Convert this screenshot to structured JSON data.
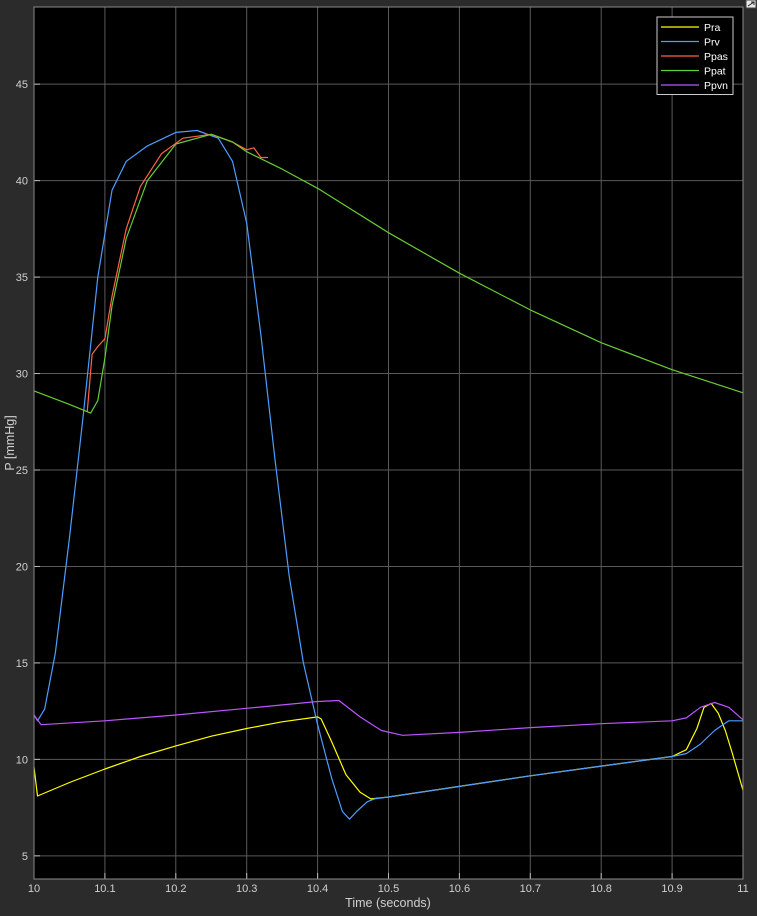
{
  "chart_data": {
    "type": "line",
    "title": "",
    "xlabel": "Time (seconds)",
    "ylabel": "P [mmHg]",
    "xlim": [
      10,
      11
    ],
    "ylim": [
      3.8,
      49
    ],
    "xticks": [
      10,
      10.1,
      10.2,
      10.3,
      10.4,
      10.5,
      10.6,
      10.7,
      10.8,
      10.9,
      11
    ],
    "xtick_labels": [
      "10",
      "10.1",
      "10.2",
      "10.3",
      "10.4",
      "10.5",
      "10.6",
      "10.7",
      "10.8",
      "10.9",
      "11"
    ],
    "yticks": [
      5,
      10,
      15,
      20,
      25,
      30,
      35,
      40,
      45
    ],
    "ytick_labels": [
      "5",
      "10",
      "15",
      "20",
      "25",
      "30",
      "35",
      "40",
      "45"
    ],
    "grid": true,
    "legend_position": "top-right",
    "background": "#000000",
    "series": [
      {
        "name": "Pra",
        "color": "#ffff00",
        "x": [
          10,
          10.005,
          10.05,
          10.1,
          10.15,
          10.2,
          10.25,
          10.3,
          10.35,
          10.4,
          10.405,
          10.42,
          10.44,
          10.46,
          10.475,
          10.5,
          10.6,
          10.7,
          10.8,
          10.9,
          10.92,
          10.935,
          10.945,
          10.955,
          10.965,
          10.975,
          10.985,
          11
        ],
        "y": [
          9.6,
          8.1,
          8.8,
          9.5,
          10.15,
          10.7,
          11.2,
          11.6,
          11.95,
          12.2,
          12.1,
          10.9,
          9.2,
          8.3,
          7.95,
          8.05,
          8.6,
          9.15,
          9.65,
          10.15,
          10.5,
          11.6,
          12.7,
          12.9,
          12.4,
          11.5,
          10.3,
          8.4
        ]
      },
      {
        "name": "Prv",
        "color": "#4d9cff",
        "x": [
          10,
          10.005,
          10.015,
          10.03,
          10.05,
          10.07,
          10.09,
          10.11,
          10.13,
          10.16,
          10.2,
          10.23,
          10.26,
          10.28,
          10.3,
          10.32,
          10.34,
          10.36,
          10.38,
          10.4,
          10.42,
          10.435,
          10.445,
          10.455,
          10.47,
          10.48,
          10.5,
          10.6,
          10.7,
          10.8,
          10.9,
          10.92,
          10.94,
          10.96,
          10.98,
          11
        ],
        "y": [
          12.3,
          12.0,
          12.6,
          15.5,
          21.5,
          28.0,
          35.0,
          39.5,
          41.0,
          41.8,
          42.5,
          42.6,
          42.2,
          41.0,
          37.8,
          32.0,
          25.5,
          19.5,
          15.0,
          11.8,
          9.0,
          7.3,
          6.9,
          7.3,
          7.8,
          7.95,
          8.05,
          8.6,
          9.15,
          9.65,
          10.15,
          10.3,
          10.8,
          11.5,
          12.0,
          12.0
        ]
      },
      {
        "name": "Ppas",
        "color": "#ff6347",
        "x": [
          10.075,
          10.082,
          10.09,
          10.1,
          10.11,
          10.13,
          10.15,
          10.18,
          10.21,
          10.25,
          10.28,
          10.3,
          10.31,
          10.32,
          10.33
        ],
        "y": [
          28.0,
          31.0,
          31.4,
          31.8,
          34.0,
          37.5,
          39.7,
          41.4,
          42.2,
          42.4,
          42.0,
          41.6,
          41.7,
          41.2,
          41.2
        ]
      },
      {
        "name": "Ppat",
        "color": "#66cc33",
        "x": [
          10,
          10.05,
          10.08,
          10.09,
          10.1,
          10.11,
          10.13,
          10.16,
          10.2,
          10.25,
          10.28,
          10.3,
          10.35,
          10.4,
          10.5,
          10.6,
          10.7,
          10.8,
          10.9,
          11
        ],
        "y": [
          29.1,
          28.4,
          27.95,
          28.6,
          30.8,
          33.5,
          37.0,
          40.0,
          41.9,
          42.4,
          42.0,
          41.5,
          40.6,
          39.6,
          37.3,
          35.2,
          33.3,
          31.6,
          30.2,
          29.0
        ]
      },
      {
        "name": "Ppvn",
        "color": "#bb55ff",
        "x": [
          10,
          10.01,
          10.1,
          10.2,
          10.3,
          10.4,
          10.43,
          10.46,
          10.49,
          10.52,
          10.6,
          10.7,
          10.8,
          10.9,
          10.92,
          10.94,
          10.96,
          10.98,
          11
        ],
        "y": [
          12.3,
          11.8,
          12.0,
          12.3,
          12.65,
          13.0,
          13.05,
          12.2,
          11.5,
          11.25,
          11.4,
          11.65,
          11.85,
          12.0,
          12.15,
          12.7,
          12.95,
          12.7,
          12.05
        ]
      }
    ]
  }
}
